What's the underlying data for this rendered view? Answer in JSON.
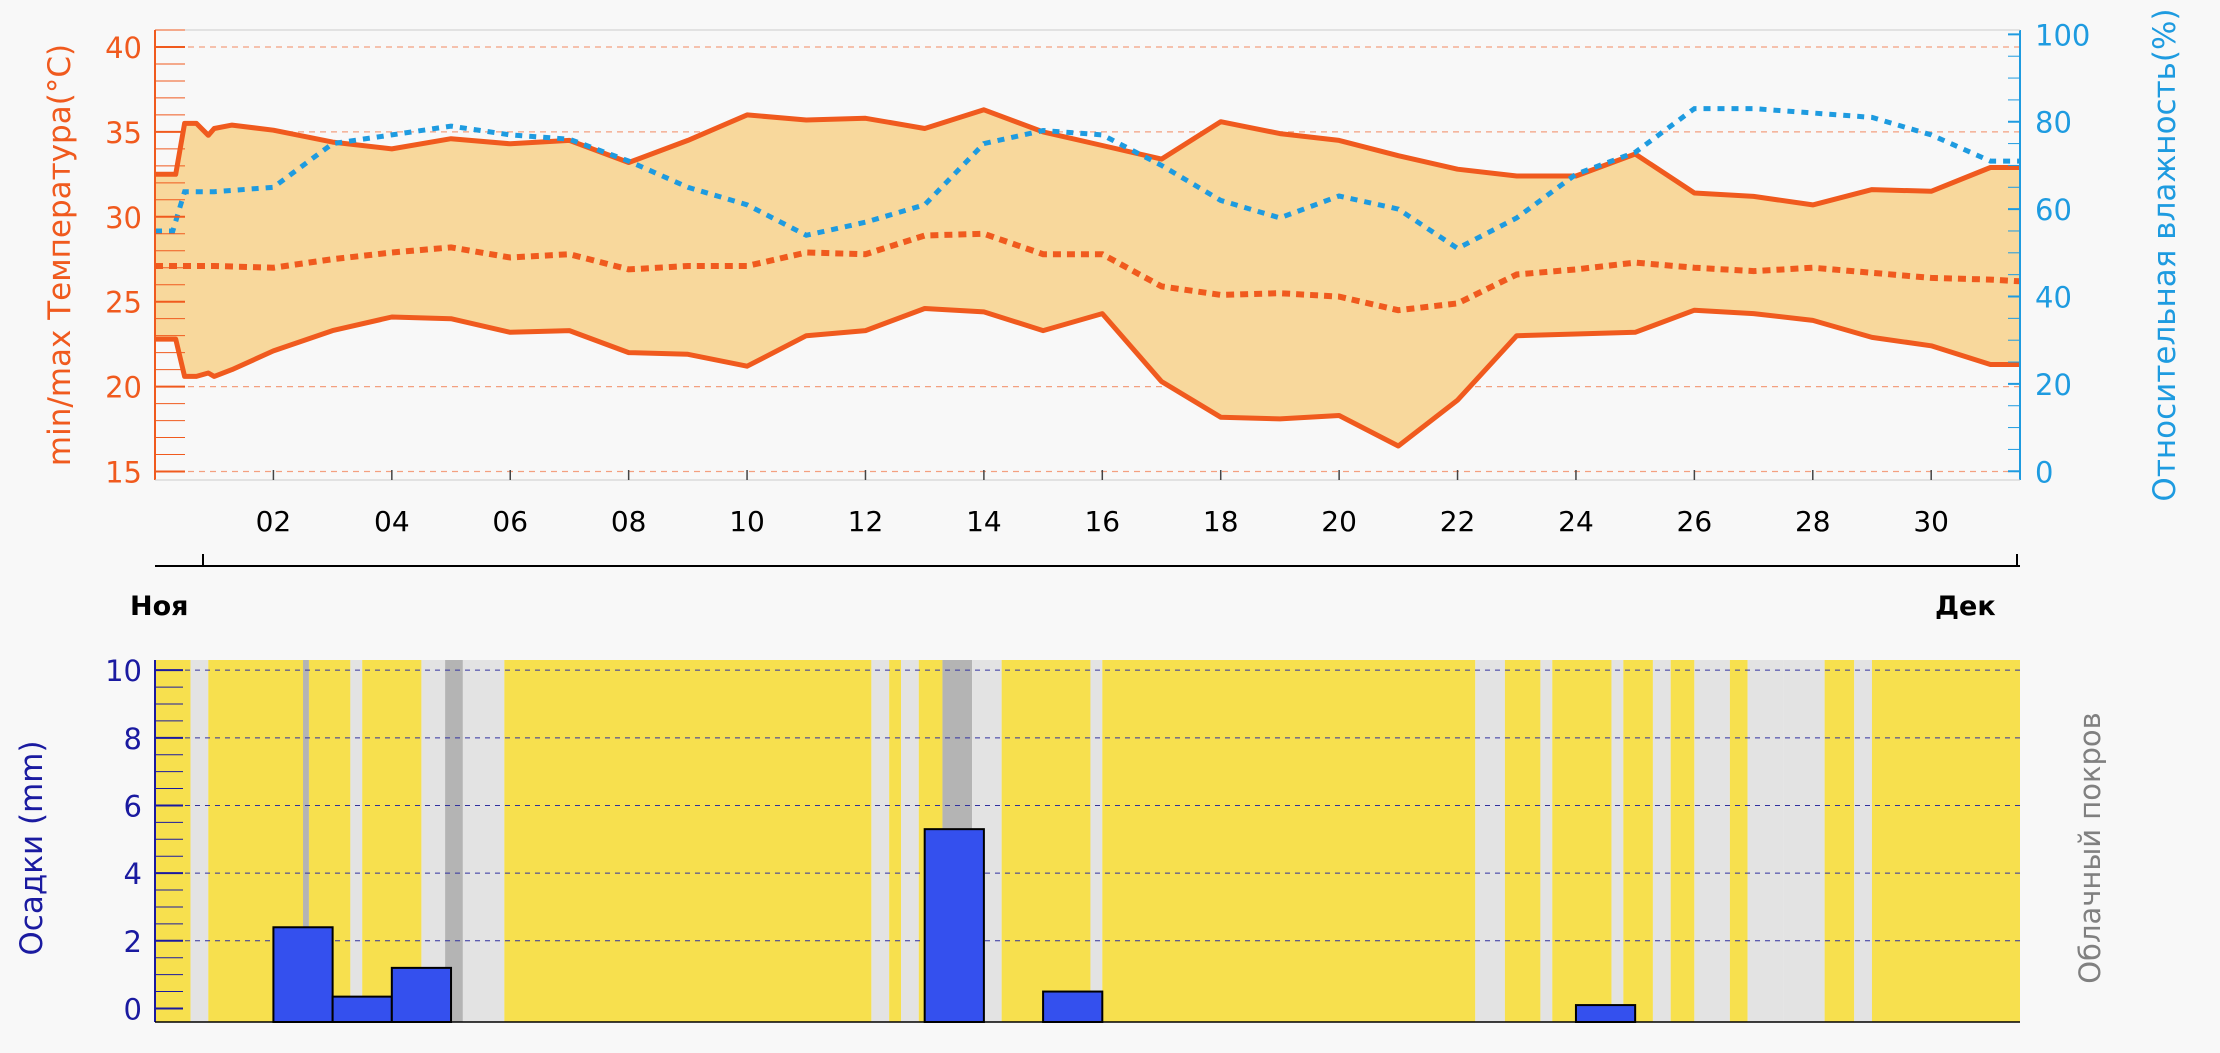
{
  "chart_data": [
    {
      "type": "line",
      "panel": "temperature-humidity",
      "xlabel": "",
      "x_ticks": [
        "02",
        "04",
        "06",
        "08",
        "10",
        "12",
        "14",
        "16",
        "18",
        "20",
        "22",
        "24",
        "26",
        "28",
        "30"
      ],
      "y_left": {
        "label": "min/max Температура(°C)",
        "ticks": [
          15,
          20,
          25,
          30,
          35,
          40
        ],
        "range": [
          14.5,
          41
        ],
        "color": "#f05a1e"
      },
      "y_right": {
        "label": "Относительная влажность(%)",
        "ticks": [
          0,
          20,
          40,
          60,
          80,
          100
        ],
        "range": [
          -2,
          101
        ],
        "color": "#1e9be0"
      },
      "month_labels": [
        "Ноя",
        "Дек"
      ],
      "series": [
        {
          "style": "max-temperature",
          "x": [
            0,
            0.35,
            0.5,
            0.7,
            0.9,
            1,
            1.3,
            2,
            3,
            4,
            5,
            6,
            7,
            8,
            9,
            10,
            11,
            12,
            13,
            14,
            15,
            16,
            17,
            18,
            19,
            20,
            21,
            22,
            23,
            24,
            25,
            26,
            27,
            28,
            29,
            30,
            31,
            31.5
          ],
          "values": [
            32.5,
            32.5,
            35.5,
            35.5,
            34.8,
            35.2,
            35.4,
            35.1,
            34.4,
            34.0,
            34.6,
            34.3,
            34.5,
            33.2,
            34.5,
            36.0,
            35.7,
            35.8,
            35.2,
            36.3,
            35.0,
            34.2,
            33.4,
            35.6,
            34.9,
            34.5,
            33.6,
            32.8,
            32.4,
            32.4,
            33.7,
            31.4,
            31.2,
            30.7,
            31.6,
            31.5,
            32.9,
            32.9
          ]
        },
        {
          "style": "min-temperature",
          "x": [
            0,
            0.35,
            0.5,
            0.7,
            0.9,
            1,
            1.3,
            2,
            3,
            4,
            5,
            6,
            7,
            8,
            9,
            10,
            11,
            12,
            13,
            14,
            15,
            16,
            17,
            18,
            19,
            20,
            21,
            22,
            23,
            24,
            25,
            26,
            27,
            28,
            29,
            30,
            31,
            31.5
          ],
          "values": [
            22.8,
            22.8,
            20.6,
            20.6,
            20.8,
            20.6,
            21.0,
            22.1,
            23.3,
            24.1,
            24.0,
            23.2,
            23.3,
            22.0,
            21.9,
            21.2,
            23.0,
            23.3,
            24.6,
            24.4,
            23.3,
            24.3,
            20.3,
            18.2,
            18.1,
            18.3,
            16.5,
            19.2,
            23.0,
            23.1,
            23.2,
            24.5,
            24.3,
            23.9,
            22.9,
            22.4,
            21.3,
            21.3
          ]
        },
        {
          "style": "mean-temperature",
          "x": [
            0,
            1,
            2,
            3,
            4,
            5,
            6,
            7,
            8,
            9,
            10,
            11,
            12,
            13,
            14,
            15,
            16,
            17,
            18,
            19,
            20,
            21,
            22,
            23,
            24,
            25,
            26,
            27,
            28,
            29,
            30,
            31,
            31.5
          ],
          "values": [
            27.1,
            27.1,
            27.0,
            27.5,
            27.9,
            28.2,
            27.6,
            27.8,
            26.9,
            27.1,
            27.1,
            27.9,
            27.8,
            28.9,
            29.0,
            27.8,
            27.8,
            25.9,
            25.4,
            25.5,
            25.3,
            24.5,
            24.9,
            26.6,
            26.9,
            27.3,
            27.0,
            26.8,
            27.0,
            26.7,
            26.4,
            26.3,
            26.2
          ]
        },
        {
          "style": "relative-humidity",
          "x": [
            0,
            0.3,
            0.5,
            1,
            2,
            3,
            4,
            5,
            6,
            7,
            8,
            9,
            10,
            11,
            12,
            13,
            14,
            15,
            16,
            17,
            18,
            19,
            20,
            21,
            22,
            23,
            24,
            25,
            26,
            27,
            28,
            29,
            30,
            31,
            31.5
          ],
          "values": [
            55,
            55,
            64,
            64,
            65,
            75,
            77,
            79,
            77,
            76,
            71,
            65,
            61,
            54,
            57,
            61,
            75,
            78,
            77,
            70,
            62,
            58,
            63,
            60,
            51,
            58,
            68,
            73,
            83,
            83,
            82,
            81,
            77,
            71,
            71
          ]
        }
      ]
    },
    {
      "type": "bar",
      "panel": "precipitation-cloud-cover",
      "y_left": {
        "label": "Осадки (mm)",
        "ticks": [
          0,
          2,
          4,
          6,
          8,
          10
        ],
        "range": [
          -0.4,
          10.3
        ],
        "color": "#1a1aa0"
      },
      "y_right": {
        "label": "Облачный покров"
      },
      "bar_x": [
        2.5,
        3.5,
        4.5,
        13.5,
        15.5,
        24.5
      ],
      "values": [
        2.4,
        0.35,
        1.2,
        5.3,
        0.5,
        0.1
      ],
      "cloud_cover_colors": {
        "clear": "#f7e04e",
        "cloudy": "#e3e3e3",
        "overcast": "#b4b4b4"
      },
      "cloud_cover_bands": [
        [
          0.0,
          0.6,
          "clear"
        ],
        [
          0.6,
          0.9,
          "cloudy"
        ],
        [
          0.9,
          2.5,
          "clear"
        ],
        [
          2.5,
          2.6,
          "overcast"
        ],
        [
          2.6,
          3.3,
          "clear"
        ],
        [
          3.3,
          3.5,
          "cloudy"
        ],
        [
          3.5,
          4.5,
          "clear"
        ],
        [
          4.5,
          4.9,
          "cloudy"
        ],
        [
          4.9,
          5.2,
          "overcast"
        ],
        [
          5.2,
          5.9,
          "cloudy"
        ],
        [
          5.9,
          12.1,
          "clear"
        ],
        [
          12.1,
          12.4,
          "cloudy"
        ],
        [
          12.4,
          12.6,
          "clear"
        ],
        [
          12.6,
          12.9,
          "cloudy"
        ],
        [
          12.9,
          13.3,
          "clear"
        ],
        [
          13.3,
          13.8,
          "overcast"
        ],
        [
          13.8,
          14.3,
          "cloudy"
        ],
        [
          14.3,
          15.8,
          "clear"
        ],
        [
          15.8,
          16.0,
          "cloudy"
        ],
        [
          16.0,
          22.3,
          "clear"
        ],
        [
          22.3,
          22.8,
          "cloudy"
        ],
        [
          22.8,
          23.4,
          "clear"
        ],
        [
          23.4,
          23.6,
          "cloudy"
        ],
        [
          23.6,
          24.6,
          "clear"
        ],
        [
          24.6,
          24.8,
          "cloudy"
        ],
        [
          24.8,
          25.3,
          "clear"
        ],
        [
          25.3,
          25.6,
          "cloudy"
        ],
        [
          25.6,
          26.0,
          "clear"
        ],
        [
          26.0,
          26.6,
          "cloudy"
        ],
        [
          26.6,
          26.9,
          "clear"
        ],
        [
          26.9,
          27.5,
          "cloudy"
        ],
        [
          27.5,
          28.2,
          "cloudy"
        ],
        [
          28.2,
          28.7,
          "clear"
        ],
        [
          28.7,
          29.0,
          "cloudy"
        ],
        [
          29.0,
          31.5,
          "clear"
        ]
      ]
    }
  ]
}
